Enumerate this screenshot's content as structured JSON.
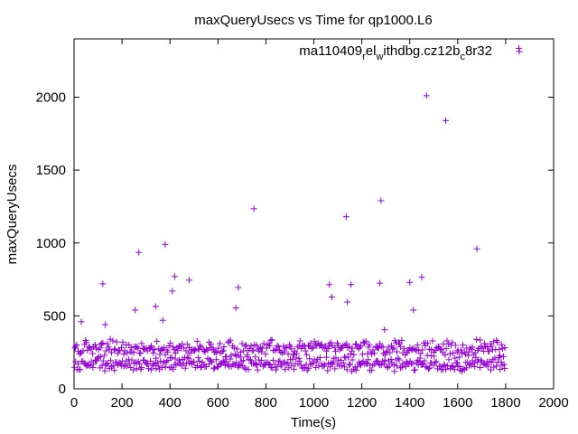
{
  "chart_data": {
    "type": "scatter",
    "title": "maxQueryUsecs vs Time for qp1000.L6",
    "xlabel": "Time(s)",
    "ylabel": "maxQueryUsecs",
    "xlim": [
      0,
      2000
    ],
    "ylim": [
      0,
      2400
    ],
    "xticks": [
      "0",
      "200",
      "400",
      "600",
      "800",
      "1000",
      "1200",
      "1400",
      "1600",
      "1800",
      "2000"
    ],
    "yticks": [
      "0",
      "500",
      "1000",
      "1500",
      "2000"
    ],
    "grid": false,
    "legend_position": "top-right",
    "marker": "+",
    "series": [
      {
        "name_parts": [
          "ma110409",
          "r",
          "el",
          "w",
          "ithdbg.cz12b",
          "c",
          "8r32"
        ],
        "color": "#9400d3",
        "outliers": [
          [
            30,
            460
          ],
          [
            120,
            720
          ],
          [
            130,
            440
          ],
          [
            255,
            540
          ],
          [
            270,
            935
          ],
          [
            340,
            565
          ],
          [
            370,
            470
          ],
          [
            380,
            990
          ],
          [
            410,
            670
          ],
          [
            420,
            770
          ],
          [
            480,
            745
          ],
          [
            675,
            555
          ],
          [
            685,
            695
          ],
          [
            750,
            1235
          ],
          [
            1065,
            715
          ],
          [
            1075,
            630
          ],
          [
            1135,
            1180
          ],
          [
            1140,
            595
          ],
          [
            1155,
            715
          ],
          [
            1275,
            725
          ],
          [
            1280,
            1290
          ],
          [
            1295,
            405
          ],
          [
            1400,
            730
          ],
          [
            1415,
            540
          ],
          [
            1450,
            765
          ],
          [
            1470,
            2010
          ],
          [
            1550,
            1840
          ],
          [
            1680,
            960
          ],
          [
            1855,
            2335
          ]
        ],
        "band_upper": {
          "x_range": [
            0,
            1800
          ],
          "y_center": 275,
          "y_spread": 70,
          "count": 360
        },
        "band_lower": {
          "x_range": [
            0,
            1800
          ],
          "y_center": 170,
          "y_spread": 55,
          "count": 360
        }
      }
    ]
  }
}
